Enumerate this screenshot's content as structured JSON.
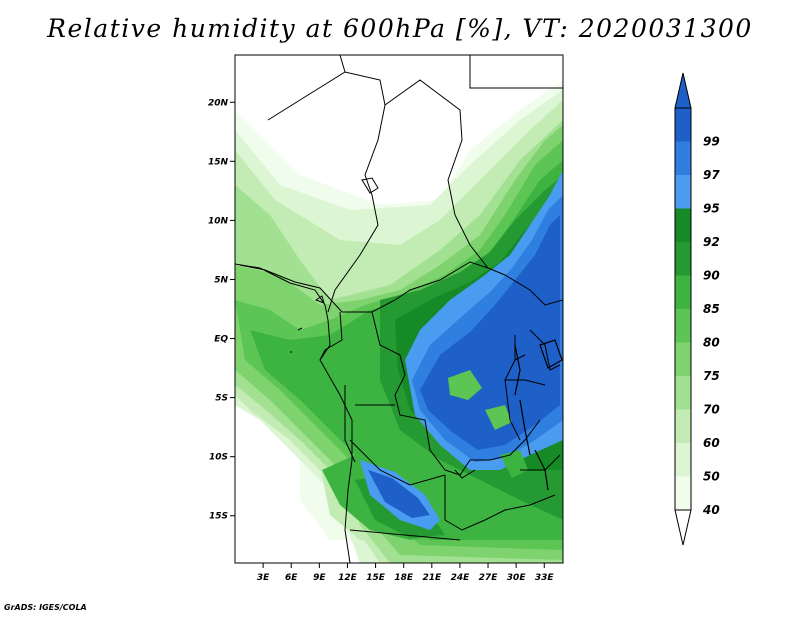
{
  "title": "Relative humidity at 600hPa [%], VT: 2020031300",
  "credit": "GrADS: IGES/COLA",
  "map": {
    "variable": "Relative humidity",
    "level": "600hPa",
    "units": "%",
    "valid_time": "2020031300",
    "lon_range": [
      0,
      35
    ],
    "lat_range": [
      -19,
      24
    ],
    "lon_ticks": [
      {
        "value": 3,
        "label": "3E"
      },
      {
        "value": 6,
        "label": "6E"
      },
      {
        "value": 9,
        "label": "9E"
      },
      {
        "value": 12,
        "label": "12E"
      },
      {
        "value": 15,
        "label": "15E"
      },
      {
        "value": 18,
        "label": "18E"
      },
      {
        "value": 21,
        "label": "21E"
      },
      {
        "value": 24,
        "label": "24E"
      },
      {
        "value": 27,
        "label": "27E"
      },
      {
        "value": 30,
        "label": "30E"
      },
      {
        "value": 33,
        "label": "33E"
      }
    ],
    "lat_ticks": [
      {
        "value": 20,
        "label": "20N"
      },
      {
        "value": 15,
        "label": "15N"
      },
      {
        "value": 10,
        "label": "10N"
      },
      {
        "value": 5,
        "label": "5N"
      },
      {
        "value": 0,
        "label": "EQ"
      },
      {
        "value": -5,
        "label": "5S"
      },
      {
        "value": -10,
        "label": "10S"
      },
      {
        "value": -15,
        "label": "15S"
      }
    ]
  },
  "colorbar": {
    "levels": [
      {
        "label": "40",
        "color": "#f0fcec"
      },
      {
        "label": "50",
        "color": "#dcf5d2"
      },
      {
        "label": "60",
        "color": "#c2ecb4"
      },
      {
        "label": "70",
        "color": "#a3e192"
      },
      {
        "label": "75",
        "color": "#7fd36f"
      },
      {
        "label": "80",
        "color": "#5cc554"
      },
      {
        "label": "85",
        "color": "#3db442"
      },
      {
        "label": "90",
        "color": "#259a32"
      },
      {
        "label": "92",
        "color": "#168a26"
      },
      {
        "label": "95",
        "color": "#4a9cf0"
      },
      {
        "label": "97",
        "color": "#2f7fe0"
      },
      {
        "label": "99",
        "color": "#1e5fc8"
      }
    ],
    "bottom_color": "#ffffff",
    "top_color": "#1e5fc8"
  }
}
